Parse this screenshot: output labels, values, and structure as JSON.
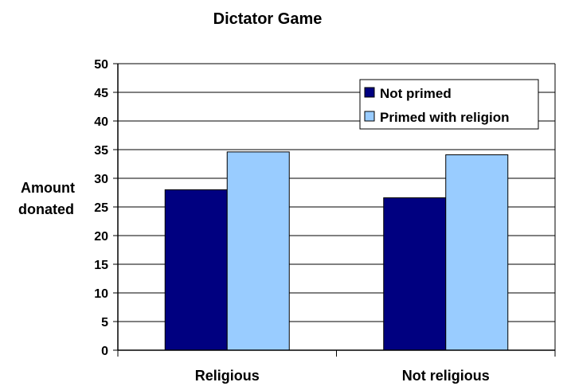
{
  "chart_data": {
    "type": "bar",
    "title": "Dictator Game",
    "ylabel": [
      "Amount",
      "donated"
    ],
    "xlabel": "",
    "categories": [
      "Religious",
      "Not religious"
    ],
    "series": [
      {
        "name": "Not primed",
        "values": [
          28.0,
          26.6
        ],
        "color": "#000080"
      },
      {
        "name": "Primed with religion",
        "values": [
          34.6,
          34.1
        ],
        "color": "#99ccff"
      }
    ],
    "ylim": [
      0,
      50
    ],
    "yticks": [
      0,
      5,
      10,
      15,
      20,
      25,
      30,
      35,
      40,
      45,
      50
    ],
    "grid": true,
    "legend_position": "top-right"
  }
}
